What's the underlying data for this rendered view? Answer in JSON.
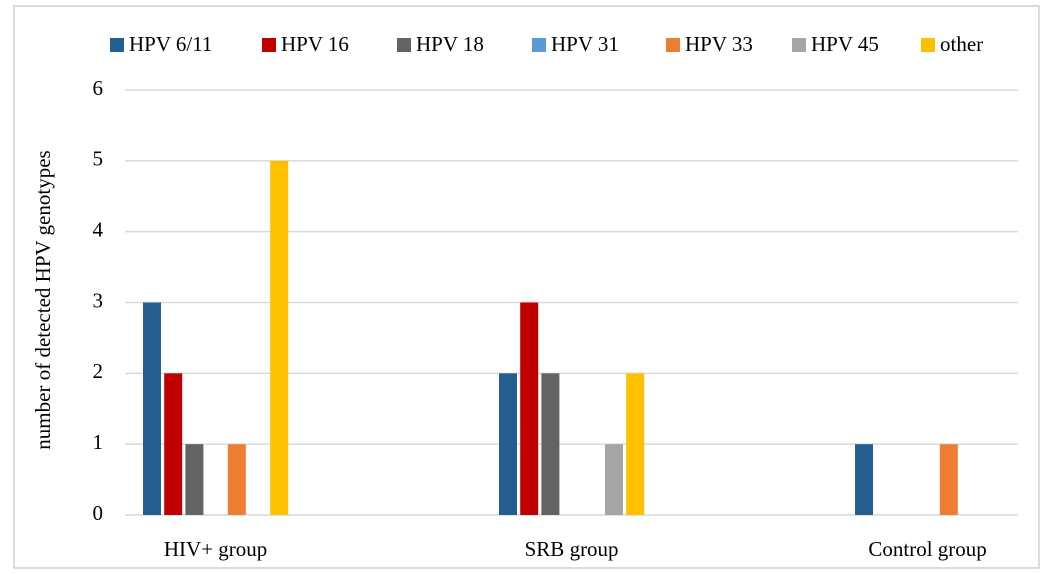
{
  "chart_data": {
    "type": "bar",
    "y_label": "number of detected  HPV genotypes",
    "categories": [
      "HIV+  group",
      "SRB group",
      "Control group"
    ],
    "series": [
      {
        "name": "HPV 6/11",
        "color": "#255e91",
        "values": [
          3,
          2,
          1
        ]
      },
      {
        "name": "HPV 16",
        "color": "#c00000",
        "values": [
          2,
          3,
          0
        ]
      },
      {
        "name": "HPV 18",
        "color": "#636363",
        "values": [
          1,
          2,
          0
        ]
      },
      {
        "name": "HPV 31",
        "color": "#5b9bd5",
        "values": [
          0,
          0,
          0
        ]
      },
      {
        "name": "HPV 33",
        "color": "#ed7d31",
        "values": [
          1,
          0,
          1
        ]
      },
      {
        "name": "HPV 45",
        "color": "#a5a5a5",
        "values": [
          0,
          1,
          0
        ]
      },
      {
        "name": "other",
        "color": "#ffc000",
        "values": [
          5,
          2,
          0
        ]
      }
    ],
    "ylim": [
      0,
      6
    ],
    "yticks": [
      0,
      1,
      2,
      3,
      4,
      5,
      6
    ],
    "grid": true,
    "legend": "top"
  }
}
